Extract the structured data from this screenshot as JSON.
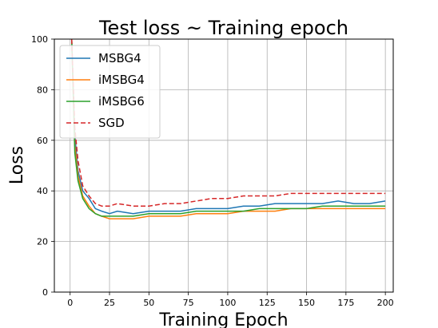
{
  "chart_data": {
    "type": "line",
    "title": "Test loss ~ Training epoch",
    "xlabel": "Training Epoch",
    "ylabel": "Loss",
    "xlim": [
      -10,
      205
    ],
    "ylim": [
      0,
      100
    ],
    "xticks": [
      0,
      25,
      50,
      75,
      100,
      125,
      150,
      175,
      200
    ],
    "yticks": [
      0,
      20,
      40,
      60,
      80,
      100
    ],
    "grid": true,
    "legend_position": "top-left",
    "series": [
      {
        "name": "MSBG4",
        "color": "#1f77b4",
        "dash": "solid",
        "x": [
          1,
          3,
          5,
          8,
          12,
          16,
          20,
          25,
          30,
          40,
          50,
          60,
          70,
          80,
          90,
          100,
          110,
          120,
          130,
          140,
          150,
          160,
          170,
          180,
          190,
          200
        ],
        "y": [
          100,
          62,
          48,
          40,
          37,
          33,
          32,
          31,
          32,
          31,
          32,
          32,
          32,
          33,
          33,
          33,
          34,
          34,
          35,
          35,
          35,
          35,
          36,
          35,
          35,
          36
        ]
      },
      {
        "name": "iMSBG4",
        "color": "#ff7f0e",
        "dash": "solid",
        "x": [
          1,
          3,
          5,
          8,
          12,
          16,
          20,
          25,
          30,
          40,
          50,
          60,
          70,
          80,
          90,
          100,
          110,
          120,
          130,
          140,
          150,
          160,
          170,
          180,
          190,
          200
        ],
        "y": [
          100,
          58,
          46,
          38,
          34,
          31,
          30,
          29,
          29,
          29,
          30,
          30,
          30,
          31,
          31,
          31,
          32,
          32,
          32,
          33,
          33,
          33,
          33,
          33,
          33,
          33
        ]
      },
      {
        "name": "iMSBG6",
        "color": "#2ca02c",
        "dash": "solid",
        "x": [
          1,
          3,
          5,
          8,
          12,
          16,
          20,
          25,
          30,
          40,
          50,
          60,
          70,
          80,
          90,
          100,
          110,
          120,
          130,
          140,
          150,
          160,
          170,
          180,
          190,
          200
        ],
        "y": [
          100,
          55,
          44,
          37,
          33,
          31,
          30,
          30,
          30,
          30,
          31,
          31,
          31,
          32,
          32,
          32,
          32,
          33,
          33,
          33,
          33,
          34,
          34,
          34,
          34,
          34
        ]
      },
      {
        "name": "SGD",
        "color": "#d62728",
        "dash": "dashed",
        "x": [
          1,
          3,
          5,
          8,
          12,
          16,
          20,
          25,
          30,
          40,
          50,
          60,
          70,
          80,
          90,
          100,
          110,
          120,
          130,
          140,
          150,
          160,
          170,
          180,
          190,
          200
        ],
        "y": [
          100,
          65,
          52,
          42,
          38,
          35,
          34,
          34,
          35,
          34,
          34,
          35,
          35,
          36,
          37,
          37,
          38,
          38,
          38,
          39,
          39,
          39,
          39,
          39,
          39,
          39
        ]
      }
    ]
  }
}
